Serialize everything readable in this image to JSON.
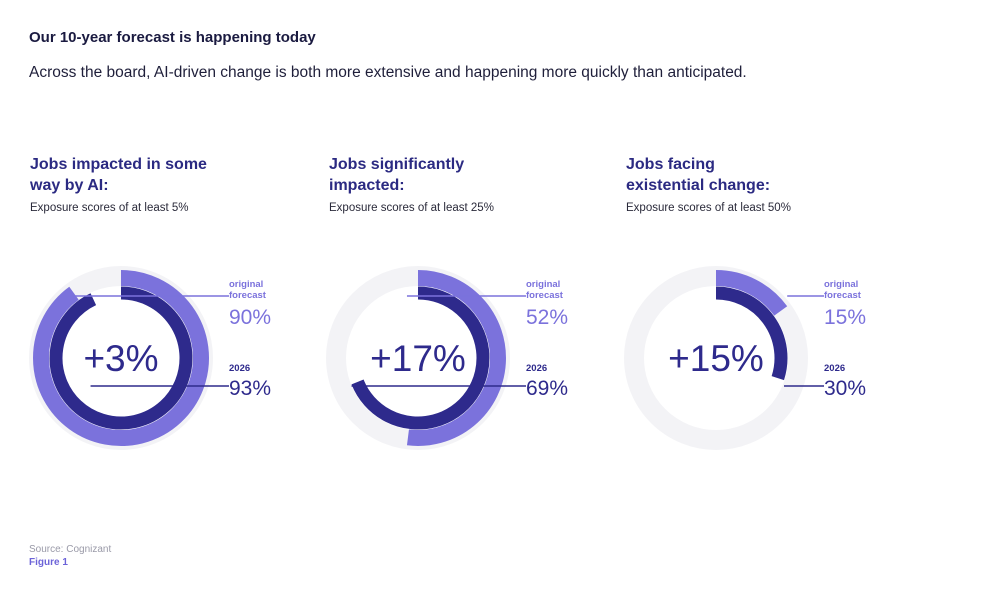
{
  "header": {
    "title": "Our 10-year forecast is happening today",
    "subtitle": "Across the board, AI-driven change is both more extensive and happening more quickly than anticipated."
  },
  "chart_data": [
    {
      "type": "donut",
      "title": "Jobs impacted in some way by AI:",
      "subtitle": "Exposure scores of at least 5%",
      "center_label": "+3%",
      "series": [
        {
          "name": "original forecast",
          "value": 90,
          "label": "90%"
        },
        {
          "name": "2026",
          "value": 93,
          "label": "93%"
        }
      ]
    },
    {
      "type": "donut",
      "title": "Jobs significantly impacted:",
      "subtitle": "Exposure scores of at least 25%",
      "center_label": "+17%",
      "series": [
        {
          "name": "original forecast",
          "value": 52,
          "label": "52%"
        },
        {
          "name": "2026",
          "value": 69,
          "label": "69%"
        }
      ]
    },
    {
      "type": "donut",
      "title": "Jobs facing existential change:",
      "subtitle": "Exposure scores of at least 50%",
      "center_label": "+15%",
      "series": [
        {
          "name": "original forecast",
          "value": 15,
          "label": "15%"
        },
        {
          "name": "2026",
          "value": 30,
          "label": "30%"
        }
      ]
    }
  ],
  "labels": {
    "original_line1": "original",
    "original_line2": "forecast",
    "year_label": "2026"
  },
  "colors": {
    "original": "#7b72dc",
    "current": "#2e2a8c",
    "track": "#f3f3f6",
    "center_text": "#2e2a8c"
  },
  "footer": {
    "source": "Source: Cognizant",
    "figure": "Figure 1"
  }
}
